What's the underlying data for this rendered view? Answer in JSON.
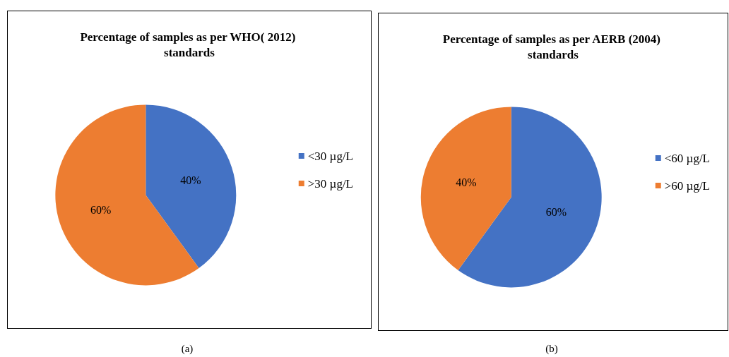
{
  "chart_data": [
    {
      "type": "pie",
      "title": "Percentage of samples as per WHO( 2012) standards",
      "categories": [
        "<30 µg/L",
        ">30 µg/L"
      ],
      "values": [
        40,
        60
      ],
      "value_labels": [
        "40%",
        "60%"
      ],
      "colors": [
        "#4472c4",
        "#ed7d31"
      ],
      "legend": "right",
      "annotations": [
        "(a)"
      ]
    },
    {
      "type": "pie",
      "title": "Percentage of samples as per AERB (2004) standards",
      "categories": [
        "<60 µg/L",
        ">60 µg/L"
      ],
      "values": [
        60,
        40
      ],
      "value_labels": [
        "60%",
        "40%"
      ],
      "colors": [
        "#4472c4",
        "#ed7d31"
      ],
      "legend": "right",
      "annotations": [
        "(b)"
      ]
    }
  ]
}
